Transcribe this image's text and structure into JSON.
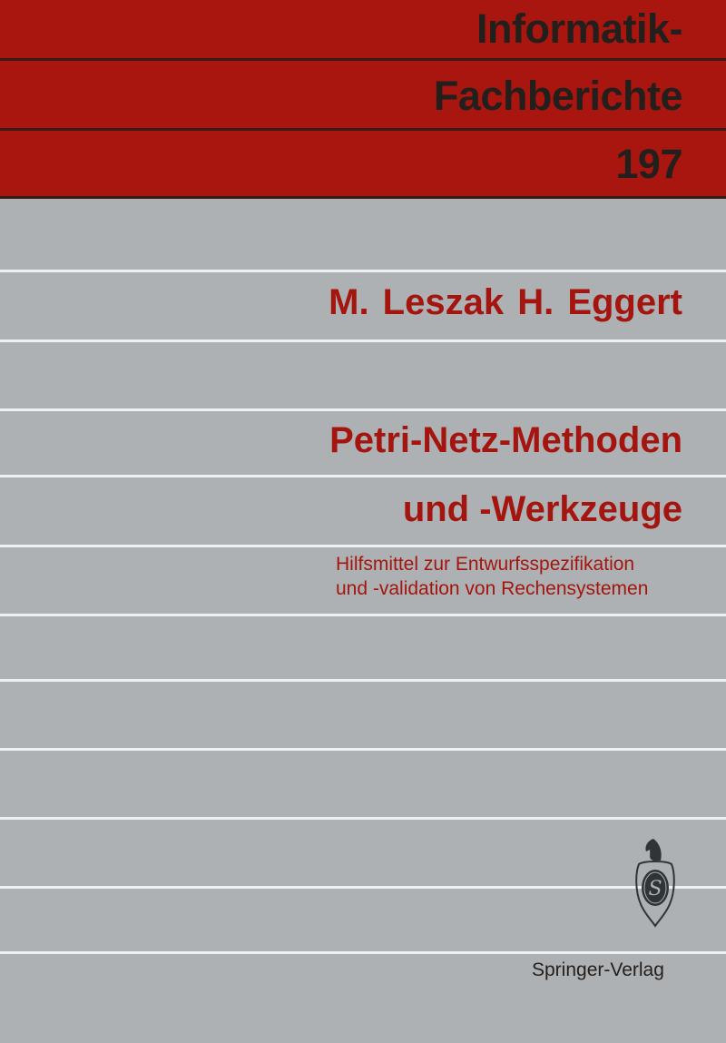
{
  "series": {
    "line1": "Informatik-",
    "line2": "Fachberichte",
    "volume": "197"
  },
  "authors": "M. Leszak  H. Eggert",
  "title": {
    "line1": "Petri-Netz-Methoden",
    "line2": "und -Werkzeuge"
  },
  "subtitle": {
    "line1": "Hilfsmittel zur Entwurfsspezifikation",
    "line2": "und -validation von Rechensystemen"
  },
  "publisher": {
    "name": "Springer-Verlag",
    "logo_icon": "springer-knight-logo"
  },
  "colors": {
    "band": "#a8160f",
    "background": "#aeb1b4",
    "series_text": "#231f1c",
    "title_text": "#a3150e"
  }
}
